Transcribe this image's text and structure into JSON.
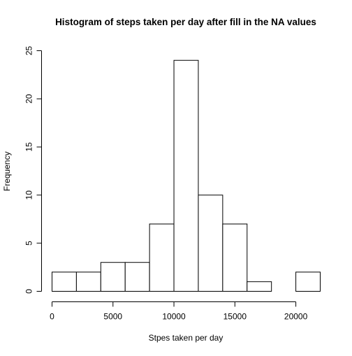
{
  "chart_data": {
    "type": "bar",
    "title": "Histogram of steps taken per day after fill in the NA values",
    "xlabel": "Stpes taken per day",
    "ylabel": "Frequency",
    "bin_edges": [
      0,
      2000,
      4000,
      6000,
      8000,
      10000,
      12000,
      14000,
      16000,
      18000,
      20000,
      22000
    ],
    "values": [
      2,
      2,
      3,
      3,
      7,
      24,
      10,
      7,
      1,
      0,
      2
    ],
    "x_ticks": [
      0,
      5000,
      10000,
      15000,
      20000
    ],
    "y_ticks": [
      0,
      5,
      10,
      15,
      20,
      25
    ],
    "xlim": [
      0,
      22000
    ],
    "ylim": [
      0,
      25
    ],
    "grid": false,
    "bar_fill": "#ffffff",
    "bar_stroke": "#000000"
  }
}
